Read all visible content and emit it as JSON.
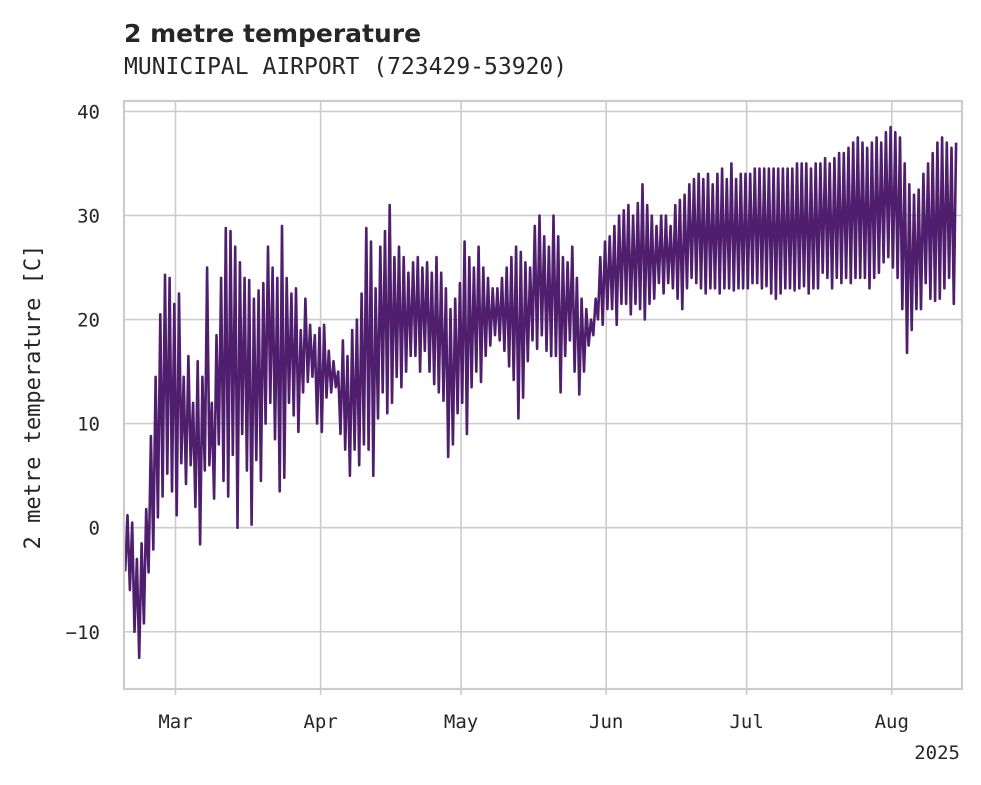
{
  "colors": {
    "series": "#4f1f6d",
    "grid": "#cccccc",
    "text": "#262626"
  },
  "chart_data": {
    "type": "line",
    "title": "2 metre temperature",
    "subtitle": "MUNICIPAL AIRPORT (723429-53920)",
    "ylabel": "2 metre temperature [C]",
    "xlabel": "",
    "x_range": [
      "2025-02-18",
      "2025-08-16"
    ],
    "ylim": [
      -15.5,
      41
    ],
    "yticks": [
      {
        "value": -10,
        "label": "−10"
      },
      {
        "value": 0,
        "label": "0"
      },
      {
        "value": 10,
        "label": "10"
      },
      {
        "value": 20,
        "label": "20"
      },
      {
        "value": 30,
        "label": "30"
      },
      {
        "value": 40,
        "label": "40"
      }
    ],
    "xticks": [
      {
        "date": "2025-03-01",
        "label": "Mar"
      },
      {
        "date": "2025-04-01",
        "label": "Apr"
      },
      {
        "date": "2025-05-01",
        "label": "May"
      },
      {
        "date": "2025-06-01",
        "label": "Jun"
      },
      {
        "date": "2025-07-01",
        "label": "Jul"
      },
      {
        "date": "2025-08-01",
        "label": "Aug"
      }
    ],
    "x_year_label": "2025",
    "grid": true,
    "series": [
      {
        "x": [
          "2025-02-18",
          "2025-02-19",
          "2025-02-20",
          "2025-02-21",
          "2025-02-22",
          "2025-02-23",
          "2025-02-24",
          "2025-02-25",
          "2025-02-26",
          "2025-02-27",
          "2025-02-28",
          "2025-03-01",
          "2025-03-02",
          "2025-03-03",
          "2025-03-04",
          "2025-03-05",
          "2025-03-06",
          "2025-03-07",
          "2025-03-08",
          "2025-03-09",
          "2025-03-10",
          "2025-03-11",
          "2025-03-12",
          "2025-03-13",
          "2025-03-14",
          "2025-03-15",
          "2025-03-16",
          "2025-03-17",
          "2025-03-18",
          "2025-03-19",
          "2025-03-20",
          "2025-03-21",
          "2025-03-22",
          "2025-03-23",
          "2025-03-24",
          "2025-03-25",
          "2025-03-26",
          "2025-03-27",
          "2025-03-28",
          "2025-03-29",
          "2025-03-30",
          "2025-03-31",
          "2025-04-01",
          "2025-04-02",
          "2025-04-03",
          "2025-04-04",
          "2025-04-05",
          "2025-04-06",
          "2025-04-07",
          "2025-04-08",
          "2025-04-09",
          "2025-04-10",
          "2025-04-11",
          "2025-04-12",
          "2025-04-13",
          "2025-04-14",
          "2025-04-15",
          "2025-04-16",
          "2025-04-17",
          "2025-04-18",
          "2025-04-19",
          "2025-04-20",
          "2025-04-21",
          "2025-04-22",
          "2025-04-23",
          "2025-04-24",
          "2025-04-25",
          "2025-04-26",
          "2025-04-27",
          "2025-04-28",
          "2025-04-29",
          "2025-04-30",
          "2025-05-01",
          "2025-05-02",
          "2025-05-03",
          "2025-05-04",
          "2025-05-05",
          "2025-05-06",
          "2025-05-07",
          "2025-05-08",
          "2025-05-09",
          "2025-05-10",
          "2025-05-11",
          "2025-05-12",
          "2025-05-13",
          "2025-05-14",
          "2025-05-15",
          "2025-05-16",
          "2025-05-17",
          "2025-05-18",
          "2025-05-19",
          "2025-05-20",
          "2025-05-21",
          "2025-05-22",
          "2025-05-23",
          "2025-05-24",
          "2025-05-25",
          "2025-05-26",
          "2025-05-27",
          "2025-05-28",
          "2025-05-29",
          "2025-05-30",
          "2025-05-31",
          "2025-06-01",
          "2025-06-02",
          "2025-06-03",
          "2025-06-04",
          "2025-06-05",
          "2025-06-06",
          "2025-06-07",
          "2025-06-08",
          "2025-06-09",
          "2025-06-10",
          "2025-06-11",
          "2025-06-12",
          "2025-06-13",
          "2025-06-14",
          "2025-06-15",
          "2025-06-16",
          "2025-06-17",
          "2025-06-18",
          "2025-06-19",
          "2025-06-20",
          "2025-06-21",
          "2025-06-22",
          "2025-06-23",
          "2025-06-24",
          "2025-06-25",
          "2025-06-26",
          "2025-06-27",
          "2025-06-28",
          "2025-06-29",
          "2025-06-30",
          "2025-07-01",
          "2025-07-02",
          "2025-07-03",
          "2025-07-04",
          "2025-07-05",
          "2025-07-06",
          "2025-07-07",
          "2025-07-08",
          "2025-07-09",
          "2025-07-10",
          "2025-07-11",
          "2025-07-12",
          "2025-07-13",
          "2025-07-14",
          "2025-07-15",
          "2025-07-16",
          "2025-07-17",
          "2025-07-18",
          "2025-07-19",
          "2025-07-20",
          "2025-07-21",
          "2025-07-22",
          "2025-07-23",
          "2025-07-24",
          "2025-07-25",
          "2025-07-26",
          "2025-07-27",
          "2025-07-28",
          "2025-07-29",
          "2025-07-30",
          "2025-07-31",
          "2025-08-01",
          "2025-08-02",
          "2025-08-03",
          "2025-08-04",
          "2025-08-05",
          "2025-08-06",
          "2025-08-07",
          "2025-08-08",
          "2025-08-09",
          "2025-08-10",
          "2025-08-11",
          "2025-08-12",
          "2025-08-13",
          "2025-08-14",
          "2025-08-15"
        ],
        "min": [
          -4.2,
          -6.0,
          -10.0,
          -12.5,
          -9.2,
          -4.3,
          -2.1,
          1.0,
          3.0,
          5.2,
          3.5,
          1.2,
          6.2,
          4.2,
          6.0,
          2.0,
          -1.6,
          5.5,
          6.0,
          2.8,
          8.0,
          4.5,
          3.0,
          7.0,
          0.0,
          9.0,
          5.5,
          0.3,
          6.5,
          4.5,
          10.0,
          12.0,
          8.5,
          3.5,
          4.8,
          12.0,
          10.8,
          9.2,
          13.0,
          14.0,
          14.5,
          10.0,
          9.2,
          12.5,
          13.0,
          13.5,
          9.0,
          7.5,
          5.0,
          7.5,
          6.0,
          8.0,
          7.5,
          5.0,
          10.5,
          13.0,
          11.0,
          12.0,
          14.5,
          13.5,
          15.0,
          16.5,
          16.5,
          15.0,
          17.0,
          15.0,
          13.8,
          13.0,
          12.2,
          6.8,
          8.0,
          11.0,
          12.0,
          9.0,
          13.5,
          15.0,
          14.0,
          16.5,
          17.5,
          18.5,
          18.0,
          17.0,
          15.5,
          14.2,
          10.5,
          12.5,
          16.0,
          18.0,
          17.2,
          18.5,
          17.0,
          16.5,
          16.5,
          13.0,
          16.5,
          18.0,
          15.0,
          12.8,
          15.0,
          17.5,
          18.5,
          20.0,
          19.5,
          21.0,
          21.0,
          19.5,
          21.5,
          21.5,
          20.5,
          21.5,
          21.0,
          20.0,
          21.5,
          22.0,
          23.5,
          22.5,
          23.5,
          23.0,
          22.0,
          21.0,
          23.0,
          24.0,
          23.5,
          23.0,
          22.5,
          23.0,
          23.0,
          22.5,
          23.0,
          23.0,
          22.8,
          23.0,
          23.0,
          23.0,
          23.5,
          23.5,
          23.0,
          23.2,
          22.5,
          22.0,
          22.5,
          23.0,
          23.0,
          22.8,
          23.0,
          23.2,
          22.5,
          23.0,
          23.0,
          24.5,
          24.0,
          23.0,
          24.0,
          23.5,
          24.0,
          23.5,
          24.0,
          24.0,
          24.0,
          23.0,
          24.0,
          24.5,
          25.5,
          26.0,
          25.0,
          24.0,
          21.0,
          16.8,
          19.0,
          21.0,
          21.0,
          23.5,
          22.0,
          21.8,
          22.0,
          23.0,
          24.0,
          21.5
        ],
        "max": [
          1.2,
          0.5,
          -3.0,
          -1.5,
          1.8,
          8.8,
          14.5,
          20.5,
          24.3,
          24.0,
          21.5,
          22.5,
          14.5,
          16.5,
          12.0,
          16.0,
          14.5,
          25.0,
          12.0,
          18.5,
          24.0,
          28.8,
          28.5,
          27.0,
          25.5,
          24.0,
          23.8,
          22.0,
          22.8,
          23.5,
          27.0,
          25.0,
          24.0,
          29.0,
          24.0,
          22.5,
          23.0,
          19.0,
          22.0,
          19.5,
          18.5,
          19.2,
          19.5,
          17.0,
          16.0,
          15.0,
          18.0,
          16.5,
          19.0,
          20.0,
          22.5,
          28.8,
          27.5,
          23.0,
          27.0,
          28.5,
          31.0,
          26.0,
          27.0,
          26.0,
          24.5,
          25.5,
          26.0,
          25.0,
          25.5,
          24.5,
          26.0,
          24.5,
          23.0,
          21.0,
          22.0,
          23.5,
          27.5,
          26.0,
          25.0,
          27.0,
          25.0,
          24.0,
          23.0,
          23.0,
          24.0,
          25.0,
          26.0,
          27.0,
          26.5,
          25.5,
          25.0,
          29.0,
          30.0,
          28.0,
          27.0,
          30.0,
          28.0,
          26.0,
          25.5,
          27.0,
          24.0,
          22.0,
          21.0,
          20.0,
          22.0,
          26.0,
          27.5,
          28.0,
          29.0,
          30.0,
          30.5,
          31.0,
          30.0,
          31.2,
          33.0,
          31.0,
          30.0,
          29.0,
          30.0,
          30.0,
          29.0,
          31.0,
          31.5,
          32.0,
          33.0,
          33.5,
          34.0,
          33.5,
          34.0,
          33.0,
          34.0,
          34.5,
          33.5,
          35.0,
          33.5,
          34.0,
          34.0,
          34.0,
          34.5,
          34.5,
          34.5,
          34.5,
          34.5,
          34.5,
          34.5,
          34.5,
          34.5,
          35.0,
          35.0,
          35.0,
          34.5,
          35.0,
          35.0,
          35.5,
          35.0,
          35.5,
          36.0,
          36.0,
          36.5,
          37.0,
          37.5,
          37.0,
          36.5,
          37.0,
          37.5,
          37.0,
          38.0,
          38.5,
          38.0,
          37.5,
          35.0,
          33.0,
          32.0,
          32.5,
          34.0,
          35.0,
          36.0,
          37.0,
          37.5,
          37.0,
          36.5,
          37.0,
          36.5,
          37.0
        ]
      }
    ]
  }
}
